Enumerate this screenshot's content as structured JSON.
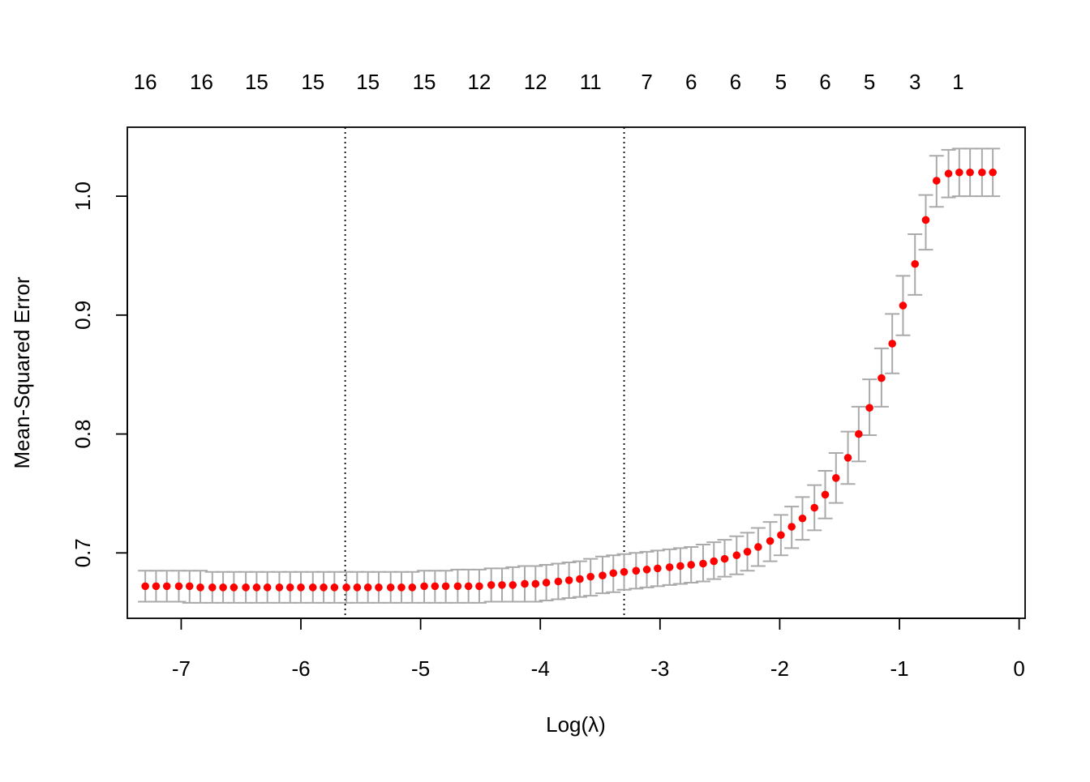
{
  "chart_data": {
    "type": "scatter",
    "xlabel": "Log(λ)",
    "ylabel": "Mean-Squared Error",
    "xlim": [
      -7.45,
      0.05
    ],
    "ylim": [
      0.645,
      1.058
    ],
    "x_ticks": [
      -7,
      -6,
      -5,
      -4,
      -3,
      -2,
      -1,
      0
    ],
    "x_tick_labels": [
      "-7",
      "-6",
      "-5",
      "-4",
      "-3",
      "-2",
      "-1",
      "0"
    ],
    "y_ticks": [
      0.7,
      0.8,
      0.9,
      1.0
    ],
    "y_tick_labels": [
      "0.7",
      "0.8",
      "0.9",
      "1.0"
    ],
    "top_axis_x": [
      -7.3,
      -6.83,
      -6.37,
      -5.9,
      -5.44,
      -4.97,
      -4.51,
      -4.04,
      -3.58,
      -3.11,
      -2.74,
      -2.37,
      -1.99,
      -1.62,
      -1.25,
      -0.87,
      -0.51
    ],
    "top_axis_labels": [
      "16",
      "16",
      "15",
      "15",
      "15",
      "15",
      "12",
      "12",
      "11",
      "7",
      "6",
      "6",
      "5",
      "6",
      "5",
      "3",
      "1"
    ],
    "vlines_x": [
      -5.63,
      -3.3
    ],
    "point_color": "#ff0000",
    "errorbar_color": "#aaaaaa",
    "x": [
      -7.3,
      -7.21,
      -7.12,
      -7.02,
      -6.93,
      -6.84,
      -6.74,
      -6.65,
      -6.56,
      -6.46,
      -6.37,
      -6.28,
      -6.18,
      -6.09,
      -6.0,
      -5.9,
      -5.81,
      -5.72,
      -5.62,
      -5.53,
      -5.44,
      -5.35,
      -5.25,
      -5.16,
      -5.07,
      -4.97,
      -4.88,
      -4.79,
      -4.69,
      -4.6,
      -4.51,
      -4.41,
      -4.32,
      -4.23,
      -4.13,
      -4.04,
      -3.95,
      -3.85,
      -3.76,
      -3.67,
      -3.58,
      -3.48,
      -3.39,
      -3.3,
      -3.2,
      -3.11,
      -3.02,
      -2.92,
      -2.83,
      -2.74,
      -2.64,
      -2.55,
      -2.46,
      -2.36,
      -2.27,
      -2.18,
      -2.08,
      -1.99,
      -1.9,
      -1.81,
      -1.71,
      -1.62,
      -1.53,
      -1.43,
      -1.34,
      -1.25,
      -1.15,
      -1.06,
      -0.97,
      -0.87,
      -0.78,
      -0.69,
      -0.59,
      -0.5,
      -0.41,
      -0.31,
      -0.22
    ],
    "y": [
      0.672,
      0.672,
      0.672,
      0.672,
      0.672,
      0.671,
      0.671,
      0.671,
      0.671,
      0.671,
      0.671,
      0.671,
      0.671,
      0.671,
      0.671,
      0.671,
      0.671,
      0.671,
      0.671,
      0.671,
      0.671,
      0.671,
      0.671,
      0.671,
      0.671,
      0.672,
      0.672,
      0.672,
      0.672,
      0.672,
      0.672,
      0.673,
      0.673,
      0.673,
      0.674,
      0.674,
      0.675,
      0.676,
      0.677,
      0.678,
      0.68,
      0.681,
      0.683,
      0.684,
      0.685,
      0.686,
      0.687,
      0.688,
      0.689,
      0.69,
      0.691,
      0.693,
      0.695,
      0.698,
      0.701,
      0.705,
      0.71,
      0.715,
      0.722,
      0.729,
      0.738,
      0.749,
      0.763,
      0.78,
      0.8,
      0.822,
      0.847,
      0.876,
      0.908,
      0.943,
      0.98,
      1.013,
      1.019,
      1.02,
      1.02,
      1.02,
      1.02
    ],
    "y_lower": [
      0.659,
      0.659,
      0.659,
      0.659,
      0.658,
      0.658,
      0.658,
      0.658,
      0.658,
      0.658,
      0.658,
      0.658,
      0.658,
      0.658,
      0.658,
      0.658,
      0.658,
      0.658,
      0.658,
      0.658,
      0.658,
      0.658,
      0.658,
      0.658,
      0.658,
      0.658,
      0.658,
      0.658,
      0.658,
      0.658,
      0.658,
      0.659,
      0.659,
      0.659,
      0.659,
      0.659,
      0.66,
      0.661,
      0.662,
      0.663,
      0.664,
      0.666,
      0.667,
      0.669,
      0.67,
      0.671,
      0.672,
      0.673,
      0.674,
      0.675,
      0.676,
      0.678,
      0.68,
      0.682,
      0.685,
      0.689,
      0.693,
      0.698,
      0.704,
      0.711,
      0.719,
      0.729,
      0.742,
      0.758,
      0.777,
      0.799,
      0.823,
      0.851,
      0.883,
      0.917,
      0.955,
      0.991,
      0.999,
      1.0,
      1.0,
      1.0,
      1.0
    ],
    "y_upper": [
      0.685,
      0.685,
      0.685,
      0.685,
      0.685,
      0.685,
      0.684,
      0.684,
      0.684,
      0.684,
      0.684,
      0.684,
      0.684,
      0.684,
      0.684,
      0.684,
      0.684,
      0.684,
      0.684,
      0.684,
      0.684,
      0.684,
      0.684,
      0.684,
      0.684,
      0.685,
      0.685,
      0.685,
      0.686,
      0.686,
      0.686,
      0.687,
      0.687,
      0.688,
      0.689,
      0.689,
      0.69,
      0.691,
      0.692,
      0.693,
      0.695,
      0.697,
      0.698,
      0.699,
      0.7,
      0.701,
      0.702,
      0.703,
      0.704,
      0.705,
      0.707,
      0.709,
      0.711,
      0.714,
      0.717,
      0.721,
      0.726,
      0.732,
      0.739,
      0.747,
      0.757,
      0.769,
      0.784,
      0.802,
      0.823,
      0.846,
      0.872,
      0.901,
      0.933,
      0.968,
      1.001,
      1.034,
      1.039,
      1.04,
      1.04,
      1.04,
      1.04
    ]
  }
}
